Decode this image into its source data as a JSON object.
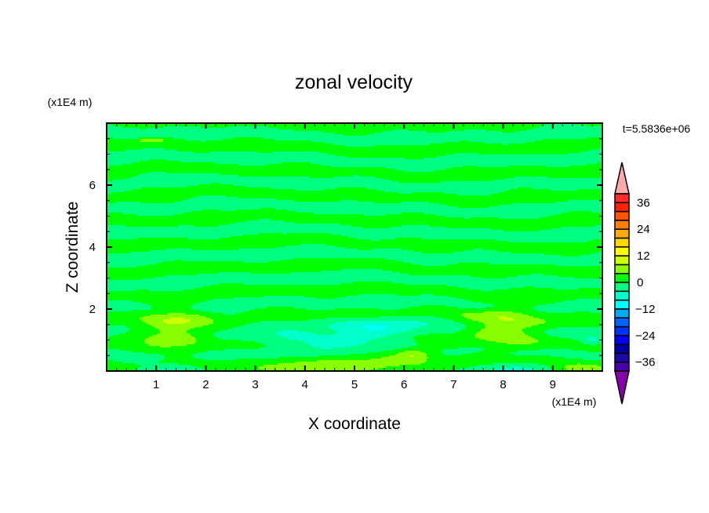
{
  "chart_data": {
    "type": "heatmap",
    "subtype": "filled-contour",
    "title": "zonal velocity",
    "xlabel": "X coordinate",
    "ylabel": "Z coordinate",
    "x_unit": "(x1E4 m)",
    "y_unit": "(x1E4 m)",
    "time_label": "t=5.5836e+06",
    "xlim": [
      0,
      10
    ],
    "ylim": [
      0,
      8
    ],
    "x_ticks": [
      1,
      2,
      3,
      4,
      5,
      6,
      7,
      8,
      9
    ],
    "y_ticks": [
      2,
      4,
      6
    ],
    "colorbar": {
      "levels": [
        -40,
        -36,
        -32,
        -28,
        -24,
        -20,
        -16,
        -12,
        -8,
        -4,
        0,
        4,
        8,
        12,
        16,
        20,
        24,
        28,
        32,
        36,
        40
      ],
      "tick_labels": [
        "36",
        "24",
        "12",
        "0",
        "-12",
        "-24",
        "-36"
      ],
      "tick_values": [
        36,
        24,
        12,
        0,
        -12,
        -24,
        -36
      ],
      "colors_low_to_high": [
        "#4a00aa",
        "#1c0aa6",
        "#0000a8",
        "#0000ff",
        "#0033ff",
        "#0066ff",
        "#00aaff",
        "#00ffff",
        "#00ffcc",
        "#00ff80",
        "#00ff00",
        "#88ff00",
        "#ccff00",
        "#ffff00",
        "#ffd700",
        "#ffaa00",
        "#ff7f00",
        "#ff5500",
        "#ff2200",
        "#ff2a2a"
      ],
      "under_color": "#8800aa",
      "over_color": "#ffaaaa",
      "extend": "both"
    },
    "field_background": {
      "band_amplitude": 2.6,
      "band_spacing_z": 0.78
    },
    "features": [
      {
        "x": 1.35,
        "z": 1.4,
        "rx": 0.75,
        "rz": 0.75,
        "value": 7.5
      },
      {
        "x": 8.05,
        "z": 1.45,
        "rx": 0.8,
        "rz": 0.75,
        "value": 7.5
      },
      {
        "x": 4.6,
        "z": 1.05,
        "rx": 1.6,
        "rz": 0.35,
        "value": -7
      },
      {
        "x": 5.6,
        "z": 1.5,
        "rx": 0.8,
        "rz": 0.3,
        "value": -6
      },
      {
        "x": 4.3,
        "z": 0.1,
        "rx": 1.5,
        "rz": 0.3,
        "value": 7
      },
      {
        "x": 6.2,
        "z": 0.55,
        "rx": 0.35,
        "rz": 0.2,
        "value": 6
      },
      {
        "x": 6.0,
        "z": 0.4,
        "rx": 0.9,
        "rz": 0.5,
        "value": 3
      },
      {
        "x": 9.6,
        "z": 0.05,
        "rx": 0.6,
        "rz": 0.25,
        "value": 6
      },
      {
        "x": 1.3,
        "z": 0.0,
        "rx": 0.6,
        "rz": 0.2,
        "value": -6
      },
      {
        "x": 8.2,
        "z": 0.05,
        "rx": 0.7,
        "rz": 0.2,
        "value": -6
      },
      {
        "x": 9.8,
        "z": 1.0,
        "rx": 0.2,
        "rz": 0.15,
        "value": -5
      },
      {
        "x": 0.9,
        "z": 7.45,
        "rx": 0.3,
        "rz": 0.06,
        "value": 6
      }
    ]
  }
}
